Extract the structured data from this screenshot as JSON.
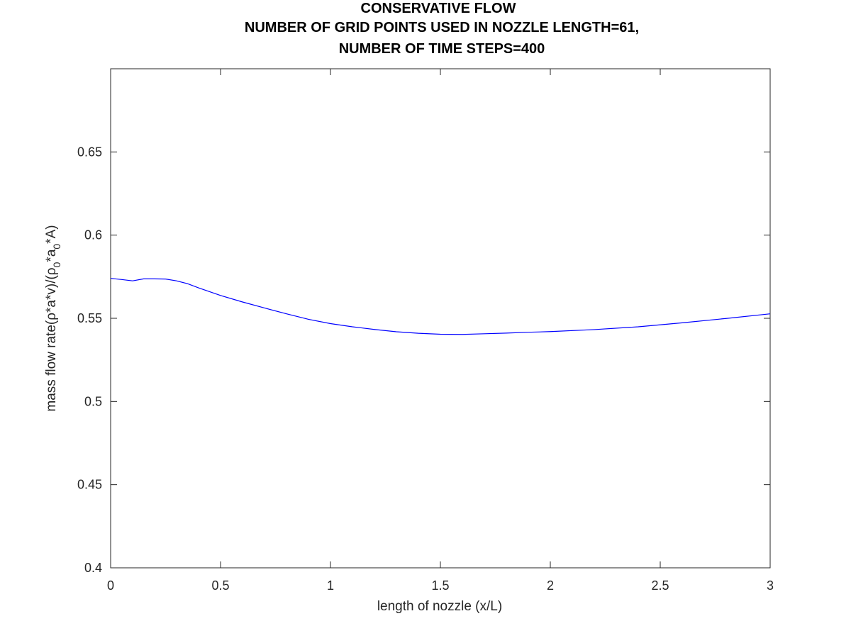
{
  "chart_data": {
    "type": "line",
    "title_lines": [
      "CONSERVATIVE FLOW",
      "NUMBER OF GRID POINTS USED IN NOZZLE LENGTH=61,",
      "NUMBER OF TIME STEPS=400"
    ],
    "xlabel": "length of nozzle (x/L)",
    "ylabel": {
      "prefix": "mass flow rate(ρ*a*v)/(ρ",
      "sub1": "0",
      "mid": "*a",
      "sub2": "0",
      "suffix": "*A)"
    },
    "xlim": [
      0,
      3
    ],
    "ylim": [
      0.4,
      0.7
    ],
    "x_ticks": [
      0,
      0.5,
      1,
      1.5,
      2,
      2.5,
      3
    ],
    "x_tick_labels": [
      "0",
      "0.5",
      "1",
      "1.5",
      "2",
      "2.5",
      "3"
    ],
    "y_ticks": [
      0.4,
      0.45,
      0.5,
      0.55,
      0.6,
      0.65
    ],
    "y_tick_labels": [
      "0.4",
      "0.45",
      "0.5",
      "0.55",
      "0.6",
      "0.65"
    ],
    "grid": false,
    "series": [
      {
        "color": "#0000ff",
        "x": [
          0,
          0.05,
          0.1,
          0.15,
          0.2,
          0.25,
          0.3,
          0.35,
          0.4,
          0.5,
          0.6,
          0.7,
          0.8,
          0.9,
          1.0,
          1.1,
          1.2,
          1.3,
          1.4,
          1.5,
          1.6,
          1.7,
          1.8,
          1.9,
          2.0,
          2.2,
          2.4,
          2.6,
          2.8,
          3.0
        ],
        "y": [
          0.574,
          0.5733,
          0.5725,
          0.5737,
          0.5737,
          0.5736,
          0.5725,
          0.5708,
          0.5683,
          0.5637,
          0.5598,
          0.5562,
          0.5527,
          0.5494,
          0.5468,
          0.5449,
          0.5433,
          0.5419,
          0.541,
          0.5404,
          0.5403,
          0.5407,
          0.5411,
          0.5416,
          0.542,
          0.5432,
          0.5449,
          0.5473,
          0.5499,
          0.5527
        ]
      }
    ]
  }
}
